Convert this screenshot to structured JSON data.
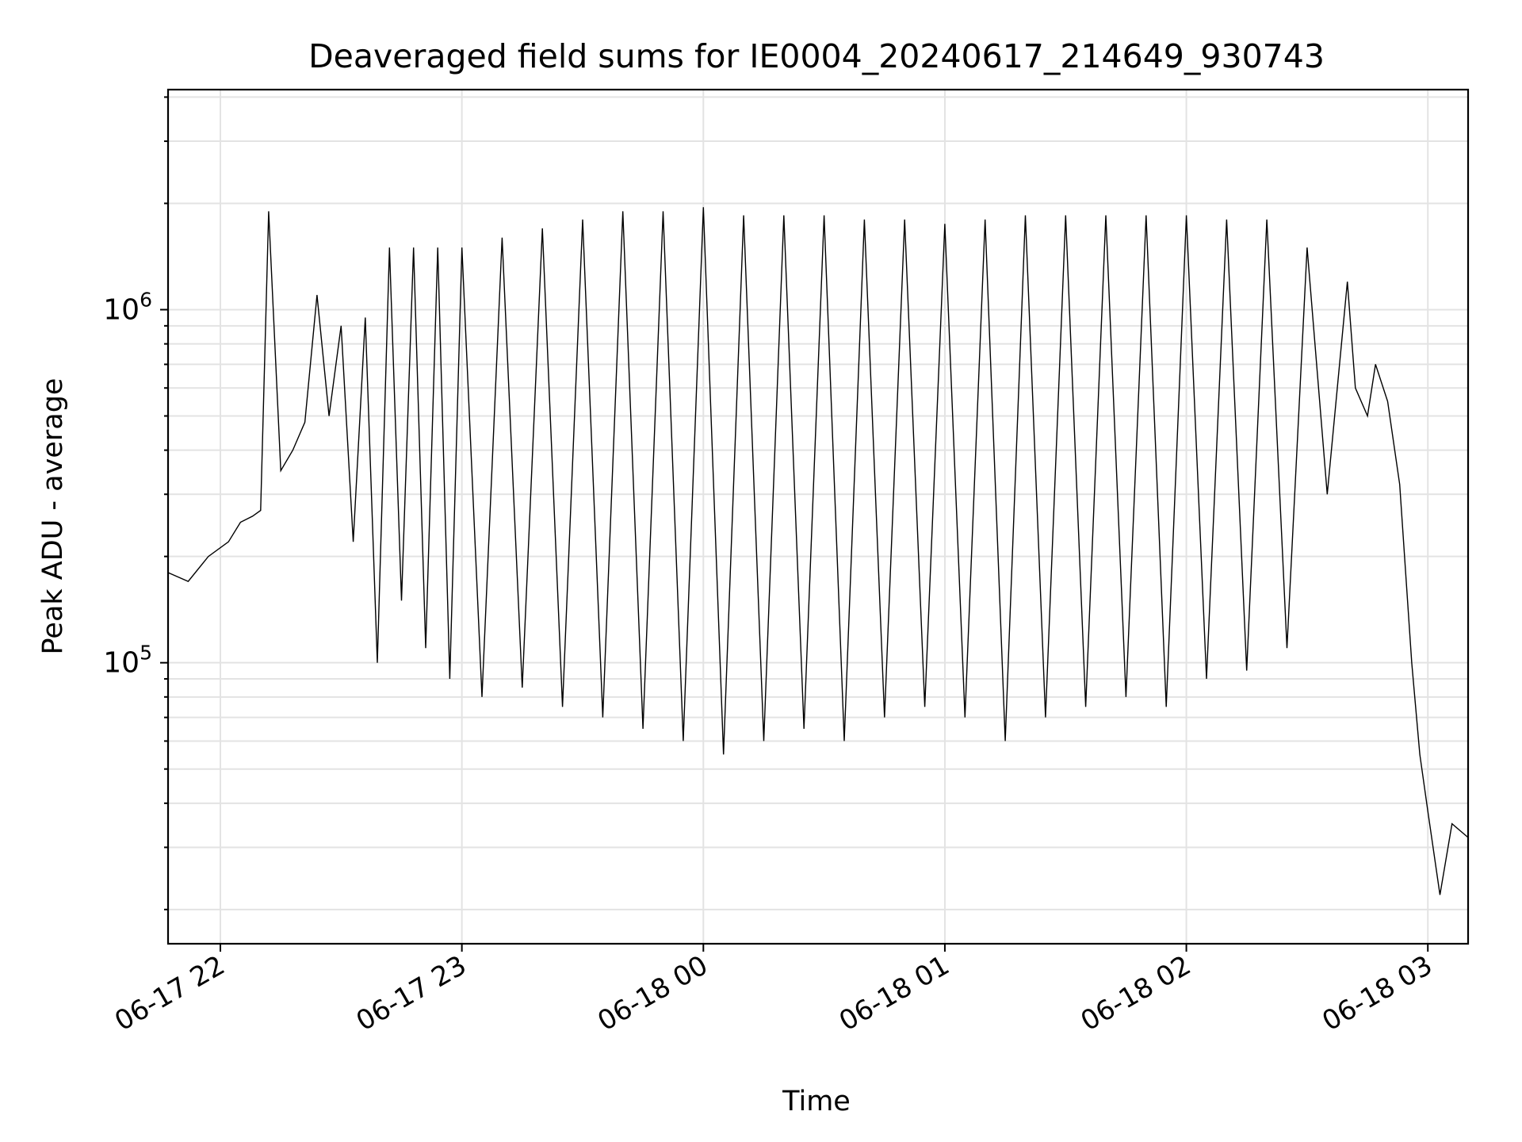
{
  "chart_data": {
    "type": "line",
    "title": "Deaveraged field sums for IE0004_20240617_214649_930743",
    "xlabel": "Time",
    "ylabel": "Peak ADU - average",
    "y_scale": "log",
    "ylim": [
      16000,
      4200000
    ],
    "xlim": [
      "2024-06-17 21:47",
      "2024-06-18 03:10"
    ],
    "x_ticks": [
      {
        "value": "2024-06-17 22:00",
        "label": "06-17 22"
      },
      {
        "value": "2024-06-17 23:00",
        "label": "06-17 23"
      },
      {
        "value": "2024-06-18 00:00",
        "label": "06-18 00"
      },
      {
        "value": "2024-06-18 01:00",
        "label": "06-18 01"
      },
      {
        "value": "2024-06-18 02:00",
        "label": "06-18 02"
      },
      {
        "value": "2024-06-18 03:00",
        "label": "06-18 03"
      }
    ],
    "y_ticks": [
      {
        "value": 100000,
        "base": "10",
        "exp": "5"
      },
      {
        "value": 1000000,
        "base": "10",
        "exp": "6"
      }
    ],
    "grid": true,
    "line_color": "#000000",
    "series": [
      {
        "x": [
          "2024-06-17 21:47",
          "2024-06-17 21:52",
          "2024-06-17 21:57",
          "2024-06-17 22:02",
          "2024-06-17 22:05",
          "2024-06-17 22:08",
          "2024-06-17 22:10",
          "2024-06-17 22:12",
          "2024-06-17 22:15",
          "2024-06-17 22:18",
          "2024-06-17 22:21",
          "2024-06-17 22:24",
          "2024-06-17 22:27",
          "2024-06-17 22:30",
          "2024-06-17 22:33",
          "2024-06-17 22:36",
          "2024-06-17 22:39",
          "2024-06-17 22:42",
          "2024-06-17 22:45",
          "2024-06-17 22:48",
          "2024-06-17 22:51",
          "2024-06-17 22:54",
          "2024-06-17 22:57",
          "2024-06-17 23:00",
          "2024-06-17 23:05",
          "2024-06-17 23:10",
          "2024-06-17 23:15",
          "2024-06-17 23:20",
          "2024-06-17 23:25",
          "2024-06-17 23:30",
          "2024-06-17 23:35",
          "2024-06-17 23:40",
          "2024-06-17 23:45",
          "2024-06-17 23:50",
          "2024-06-17 23:55",
          "2024-06-18 00:00",
          "2024-06-18 00:05",
          "2024-06-18 00:10",
          "2024-06-18 00:15",
          "2024-06-18 00:20",
          "2024-06-18 00:25",
          "2024-06-18 00:30",
          "2024-06-18 00:35",
          "2024-06-18 00:40",
          "2024-06-18 00:45",
          "2024-06-18 00:50",
          "2024-06-18 00:55",
          "2024-06-18 01:00",
          "2024-06-18 01:05",
          "2024-06-18 01:10",
          "2024-06-18 01:15",
          "2024-06-18 01:20",
          "2024-06-18 01:25",
          "2024-06-18 01:30",
          "2024-06-18 01:35",
          "2024-06-18 01:40",
          "2024-06-18 01:45",
          "2024-06-18 01:50",
          "2024-06-18 01:55",
          "2024-06-18 02:00",
          "2024-06-18 02:05",
          "2024-06-18 02:10",
          "2024-06-18 02:15",
          "2024-06-18 02:20",
          "2024-06-18 02:25",
          "2024-06-18 02:30",
          "2024-06-18 02:35",
          "2024-06-18 02:40",
          "2024-06-18 02:42",
          "2024-06-18 02:45",
          "2024-06-18 02:47",
          "2024-06-18 02:50",
          "2024-06-18 02:53",
          "2024-06-18 02:56",
          "2024-06-18 02:58",
          "2024-06-18 03:00",
          "2024-06-18 03:03",
          "2024-06-18 03:06",
          "2024-06-18 03:10"
        ],
        "y": [
          180000,
          170000,
          200000,
          220000,
          250000,
          260000,
          270000,
          1900000,
          350000,
          400000,
          480000,
          1100000,
          500000,
          900000,
          220000,
          950000,
          100000,
          1500000,
          150000,
          1500000,
          110000,
          1500000,
          90000,
          1500000,
          80000,
          1600000,
          85000,
          1700000,
          75000,
          1800000,
          70000,
          1900000,
          65000,
          1900000,
          60000,
          1950000,
          55000,
          1850000,
          60000,
          1850000,
          65000,
          1850000,
          60000,
          1800000,
          70000,
          1800000,
          75000,
          1750000,
          70000,
          1800000,
          60000,
          1850000,
          70000,
          1850000,
          75000,
          1850000,
          80000,
          1850000,
          75000,
          1850000,
          90000,
          1800000,
          95000,
          1800000,
          110000,
          1500000,
          300000,
          1200000,
          600000,
          500000,
          700000,
          550000,
          320000,
          100000,
          55000,
          38000,
          22000,
          35000,
          32000
        ]
      }
    ]
  }
}
